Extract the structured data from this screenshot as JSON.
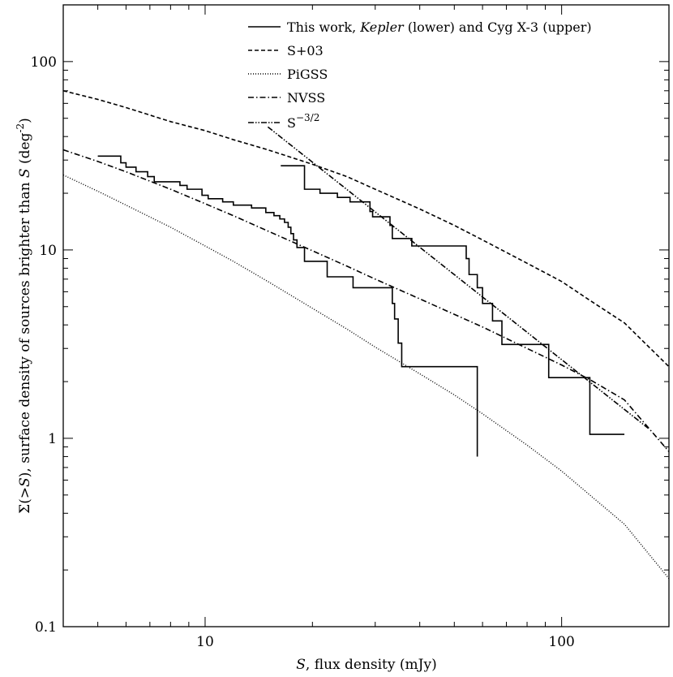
{
  "chart_data": {
    "type": "line",
    "xscale": "log",
    "yscale": "log",
    "xlim": [
      4,
      200
    ],
    "ylim": [
      0.1,
      200
    ],
    "xticks": [
      {
        "value": 10,
        "label": "10"
      },
      {
        "value": 100,
        "label": "100"
      }
    ],
    "yticks": [
      {
        "value": 0.1,
        "label": "0.1"
      },
      {
        "value": 1,
        "label": "1"
      },
      {
        "value": 10,
        "label": "10"
      },
      {
        "value": 100,
        "label": "100"
      }
    ],
    "xlabel": {
      "italic": "S",
      "rest": ", flux density (mJy)"
    },
    "ylabel": {
      "p1": "Σ(>",
      "p1_italic": "S",
      "p2": "), surface density of sources brighter than ",
      "p2_italic": "S",
      "p3": " (deg",
      "p3_sup": "-2",
      "p4": ")"
    },
    "legend": {
      "position": "top-right",
      "entries": [
        {
          "name": "this-work",
          "style": "solid",
          "t1": "This work, ",
          "t_italic": "Kepler",
          "t2": " (lower) and Cyg X-3 (upper)"
        },
        {
          "name": "s03",
          "style": "dashed",
          "t1": "S+03"
        },
        {
          "name": "pigss",
          "style": "dotted",
          "t1": "PiGSS"
        },
        {
          "name": "nvss",
          "style": "dashdot",
          "t1": "NVSS"
        },
        {
          "name": "s32",
          "style": "dashdotdot",
          "t1": "S",
          "t_sup": "−3/2"
        }
      ]
    },
    "series": [
      {
        "name": "This work Kepler (lower)",
        "style": "solid",
        "step": true,
        "points": [
          [
            5.0,
            31.5
          ],
          [
            5.8,
            31.5
          ],
          [
            5.8,
            29.0
          ],
          [
            6.0,
            29.0
          ],
          [
            6.0,
            27.5
          ],
          [
            6.4,
            27.5
          ],
          [
            6.4,
            26.0
          ],
          [
            6.9,
            26.0
          ],
          [
            6.9,
            24.5
          ],
          [
            7.2,
            24.5
          ],
          [
            7.2,
            23.0
          ],
          [
            8.5,
            23.0
          ],
          [
            8.5,
            22.0
          ],
          [
            8.9,
            22.0
          ],
          [
            8.9,
            21.0
          ],
          [
            9.8,
            21.0
          ],
          [
            9.8,
            19.5
          ],
          [
            10.2,
            19.5
          ],
          [
            10.2,
            18.7
          ],
          [
            11.2,
            18.7
          ],
          [
            11.2,
            18.0
          ],
          [
            12.0,
            18.0
          ],
          [
            12.0,
            17.3
          ],
          [
            13.5,
            17.3
          ],
          [
            13.5,
            16.7
          ],
          [
            14.8,
            16.7
          ],
          [
            14.8,
            15.8
          ],
          [
            15.6,
            15.8
          ],
          [
            15.6,
            15.2
          ],
          [
            16.2,
            15.2
          ],
          [
            16.2,
            14.6
          ],
          [
            16.7,
            14.6
          ],
          [
            16.7,
            14.0
          ],
          [
            17.1,
            14.0
          ],
          [
            17.1,
            13.2
          ],
          [
            17.4,
            13.2
          ],
          [
            17.4,
            12.2
          ],
          [
            17.7,
            12.2
          ],
          [
            17.7,
            11.3
          ],
          [
            18.1,
            11.3
          ],
          [
            18.1,
            10.3
          ],
          [
            19.0,
            10.3
          ],
          [
            19.0,
            8.7
          ],
          [
            22.0,
            8.7
          ],
          [
            22.0,
            7.2
          ],
          [
            26.0,
            7.2
          ],
          [
            26.0,
            6.3
          ],
          [
            33.5,
            6.3
          ],
          [
            33.5,
            5.2
          ],
          [
            34.0,
            5.2
          ],
          [
            34.0,
            4.3
          ],
          [
            34.8,
            4.3
          ],
          [
            34.8,
            3.2
          ],
          [
            35.6,
            3.2
          ],
          [
            35.6,
            2.4
          ],
          [
            58.0,
            2.4
          ],
          [
            58.0,
            1.55
          ],
          [
            58.0,
            0.8
          ]
        ]
      },
      {
        "name": "This work Cyg X-3 (upper)",
        "style": "solid",
        "step": true,
        "points": [
          [
            16.3,
            28.0
          ],
          [
            19.0,
            28.0
          ],
          [
            19.0,
            21.0
          ],
          [
            21.0,
            21.0
          ],
          [
            21.0,
            20.0
          ],
          [
            23.5,
            20.0
          ],
          [
            23.5,
            19.0
          ],
          [
            25.5,
            19.0
          ],
          [
            25.5,
            18.0
          ],
          [
            29.0,
            18.0
          ],
          [
            29.0,
            16.0
          ],
          [
            29.5,
            16.0
          ],
          [
            29.5,
            15.0
          ],
          [
            33.0,
            15.0
          ],
          [
            33.0,
            13.5
          ],
          [
            33.5,
            13.5
          ],
          [
            33.5,
            11.5
          ],
          [
            38.0,
            11.5
          ],
          [
            38.0,
            10.5
          ],
          [
            54.0,
            10.5
          ],
          [
            54.0,
            9.0
          ],
          [
            55.0,
            9.0
          ],
          [
            55.0,
            7.4
          ],
          [
            58.0,
            7.4
          ],
          [
            58.0,
            6.3
          ],
          [
            60.0,
            6.3
          ],
          [
            60.0,
            5.2
          ],
          [
            64.0,
            5.2
          ],
          [
            64.0,
            4.2
          ],
          [
            68.0,
            4.2
          ],
          [
            68.0,
            3.15
          ],
          [
            92.0,
            3.15
          ],
          [
            92.0,
            2.1
          ],
          [
            120.0,
            2.1
          ],
          [
            120.0,
            1.05
          ],
          [
            150.0,
            1.05
          ]
        ]
      },
      {
        "name": "S+03",
        "style": "dashed",
        "step": false,
        "points": [
          [
            4,
            70
          ],
          [
            5,
            63
          ],
          [
            6,
            57
          ],
          [
            8,
            48
          ],
          [
            10,
            43
          ],
          [
            12,
            38.5
          ],
          [
            15,
            34
          ],
          [
            20,
            28.5
          ],
          [
            25,
            24.5
          ],
          [
            30,
            21
          ],
          [
            40,
            16.5
          ],
          [
            50,
            13.5
          ],
          [
            60,
            11.3
          ],
          [
            80,
            8.5
          ],
          [
            100,
            6.8
          ],
          [
            120,
            5.4
          ],
          [
            150,
            4.1
          ],
          [
            200,
            2.4
          ]
        ]
      },
      {
        "name": "PiGSS",
        "style": "dotted",
        "step": false,
        "points": [
          [
            4,
            25
          ],
          [
            5,
            20.5
          ],
          [
            6,
            17.3
          ],
          [
            8,
            13.2
          ],
          [
            10,
            10.5
          ],
          [
            12,
            8.7
          ],
          [
            15,
            6.8
          ],
          [
            20,
            4.9
          ],
          [
            25,
            3.8
          ],
          [
            30,
            3.05
          ],
          [
            40,
            2.2
          ],
          [
            50,
            1.7
          ],
          [
            60,
            1.35
          ],
          [
            80,
            0.92
          ],
          [
            100,
            0.67
          ],
          [
            120,
            0.5
          ],
          [
            150,
            0.35
          ],
          [
            200,
            0.18
          ]
        ]
      },
      {
        "name": "NVSS",
        "style": "dashdot",
        "step": false,
        "points": [
          [
            4,
            34
          ],
          [
            5,
            29.5
          ],
          [
            6,
            26
          ],
          [
            8,
            21
          ],
          [
            10,
            17.6
          ],
          [
            12,
            15.2
          ],
          [
            15,
            12.6
          ],
          [
            20,
            9.9
          ],
          [
            25,
            8.2
          ],
          [
            30,
            7.0
          ],
          [
            40,
            5.5
          ],
          [
            50,
            4.55
          ],
          [
            60,
            3.9
          ],
          [
            80,
            3.0
          ],
          [
            100,
            2.45
          ],
          [
            120,
            2.05
          ],
          [
            150,
            1.6
          ],
          [
            200,
            0.85
          ]
        ]
      },
      {
        "name": "S^-3/2",
        "style": "dashdotdot",
        "step": false,
        "points": [
          [
            15,
            45
          ],
          [
            175,
            1.13
          ]
        ]
      }
    ]
  }
}
